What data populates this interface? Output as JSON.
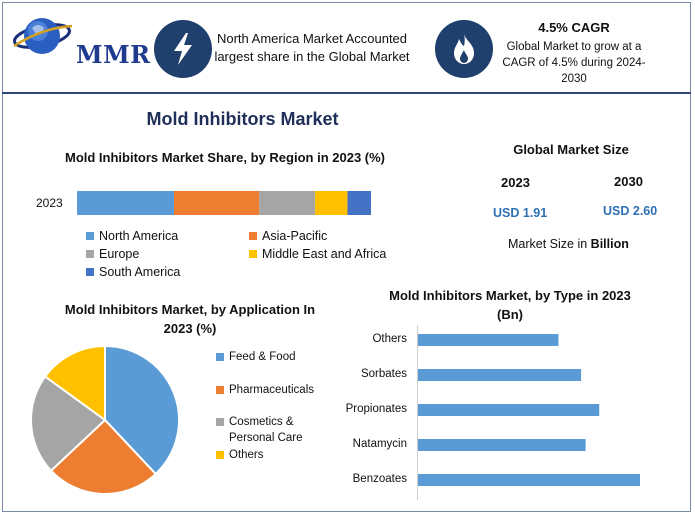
{
  "header": {
    "logo_text": "MMR",
    "info1": {
      "icon": "lightning-icon",
      "text": "North America Market Accounted largest share in the Global Market"
    },
    "info2": {
      "icon": "flame-icon",
      "title": "4.5% CAGR",
      "text": "Global Market to grow at a CAGR of 4.5% during 2024-2030"
    }
  },
  "main_title": "Mold Inhibitors Market",
  "colors": {
    "blue": "#5b9bd5",
    "orange": "#ed7d31",
    "gray": "#a5a5a5",
    "yellow": "#ffc000",
    "dark_blue": "#4472c4",
    "navy": "#1f3f6d",
    "value_blue": "#2e6fb5"
  },
  "market_size": {
    "title": "Global Market Size",
    "year1": "2023",
    "year2": "2030",
    "value1": "USD 1.91",
    "value2": "USD 2.60",
    "note_prefix": "Market Size in ",
    "note_unit": "Billion"
  },
  "chart_data": [
    {
      "type": "bar",
      "orientation": "horizontal-stacked",
      "title": "Mold Inhibitors Market Share, by Region in 2023 (%)",
      "categories": [
        "2023"
      ],
      "series": [
        {
          "name": "North America",
          "values": [
            33
          ]
        },
        {
          "name": "Asia-Pacific",
          "values": [
            29
          ]
        },
        {
          "name": "Europe",
          "values": [
            19
          ]
        },
        {
          "name": "Middle East and Africa",
          "values": [
            11
          ]
        },
        {
          "name": "South America",
          "values": [
            8
          ]
        }
      ],
      "legend": "bottom"
    },
    {
      "type": "pie",
      "title": "Mold Inhibitors Market, by Application In 2023 (%)",
      "labels": [
        "Feed & Food",
        "Pharmaceuticals",
        "Cosmetics & Personal Care",
        "Others"
      ],
      "legend_lines": [
        [
          "Feed & Food"
        ],
        [
          "Pharmaceuticals"
        ],
        [
          "Cosmetics &",
          "Personal Care"
        ],
        [
          "Others"
        ]
      ],
      "values": [
        38,
        25,
        22,
        15
      ],
      "legend": "right"
    },
    {
      "type": "bar",
      "orientation": "horizontal",
      "title": "Mold Inhibitors Market, by Type  in 2023 (Bn)",
      "categories": [
        "Others",
        "Sorbates",
        "Propionates",
        "Natamycin",
        "Benzoates"
      ],
      "values": [
        0.31,
        0.36,
        0.4,
        0.37,
        0.49
      ],
      "xlim": [
        0,
        0.5
      ],
      "grid": false
    }
  ]
}
